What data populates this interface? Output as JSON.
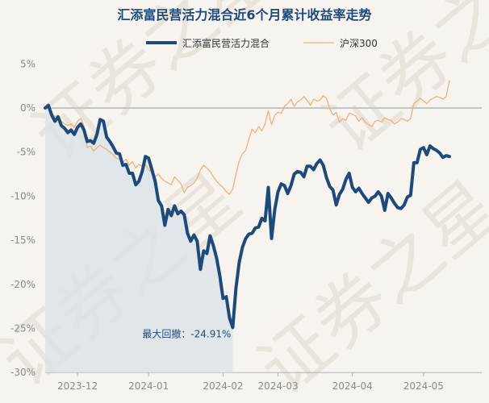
{
  "chart_data": {
    "type": "line",
    "title": "汇添富民营活力混合近6个月累计收益率走势",
    "watermark": "证券之星",
    "ylim": [
      -30,
      5
    ],
    "yticks": [
      5,
      0,
      -5,
      -10,
      -15,
      -20,
      -25,
      -30
    ],
    "ytick_labels": [
      "5%",
      "0%",
      "-5%",
      "-10%",
      "-15%",
      "-20%",
      "-25%",
      "-30%"
    ],
    "x_range": [
      0,
      135
    ],
    "xticks": [
      {
        "label": "2023-12",
        "pos": 10
      },
      {
        "label": "2024-01",
        "pos": 32
      },
      {
        "label": "2024-02",
        "pos": 55
      },
      {
        "label": "2024-03",
        "pos": 72
      },
      {
        "label": "2024-04",
        "pos": 95
      },
      {
        "label": "2024-05",
        "pos": 117
      }
    ],
    "series": [
      {
        "name": "汇添富民营活力混合",
        "color": "#1e4a7a",
        "values": [
          0,
          0.3,
          -0.8,
          -1.5,
          -1.0,
          -2.0,
          -2.3,
          -2.8,
          -2.5,
          -3.0,
          -2.2,
          -1.8,
          -2.5,
          -3.8,
          -3.7,
          -4.0,
          -3.0,
          -1.3,
          -1.5,
          -3.3,
          -3.8,
          -4.4,
          -5.1,
          -5.2,
          -6.5,
          -6.4,
          -7.4,
          -7.4,
          -8.7,
          -8.3,
          -7.2,
          -5.5,
          -5.7,
          -7.0,
          -8.3,
          -10.5,
          -11.1,
          -13.3,
          -11.5,
          -12.2,
          -11.1,
          -12.0,
          -11.7,
          -12.1,
          -14.2,
          -15.1,
          -14.4,
          -15.1,
          -18.3,
          -16.2,
          -16.5,
          -14.5,
          -15.6,
          -17.0,
          -19.0,
          -21.6,
          -21.4,
          -23.8,
          -24.9,
          -20.4,
          -17.5,
          -15.8,
          -14.8,
          -14.3,
          -14.2,
          -13.6,
          -13.5,
          -12.5,
          -12.8,
          -9.0,
          -14.8,
          -11.5,
          -9.5,
          -8.6,
          -8.8,
          -9.7,
          -8.8,
          -7.5,
          -7.2,
          -7.3,
          -7.8,
          -6.6,
          -6.6,
          -7.0,
          -6.3,
          -5.9,
          -6.5,
          -7.9,
          -8.9,
          -9.3,
          -11.0,
          -9.8,
          -9.2,
          -8.1,
          -7.4,
          -9.0,
          -9.5,
          -9.1,
          -9.7,
          -10.2,
          -10.7,
          -10.2,
          -10.0,
          -9.5,
          -10.0,
          -11.6,
          -9.7,
          -10.2,
          -10.8,
          -11.3,
          -11.4,
          -11.0,
          -10.1,
          -9.9,
          -6.2,
          -6.2,
          -4.7,
          -4.5,
          -5.3,
          -4.3,
          -4.6,
          -4.8,
          -5.1,
          -5.6,
          -5.4,
          -5.5
        ]
      },
      {
        "name": "沪深300",
        "color": "#f0b07c",
        "values": [
          0,
          0.2,
          -0.5,
          -1.0,
          -0.8,
          -1.5,
          -1.8,
          -2.0,
          -1.8,
          -2.2,
          -1.5,
          -1.2,
          -2.0,
          -4.5,
          -4.3,
          -4.9,
          -4.5,
          -4.2,
          -4.5,
          -4.7,
          -5.0,
          -5.3,
          -5.7,
          -5.8,
          -6.2,
          -5.8,
          -6.5,
          -6.1,
          -6.8,
          -6.4,
          -6.6,
          -6.4,
          -7.0,
          -7.3,
          -7.8,
          -7.5,
          -8.0,
          -8.3,
          -8.5,
          -8.7,
          -7.8,
          -8.2,
          -8.6,
          -9.6,
          -9.0,
          -8.8,
          -8.5,
          -8.0,
          -7.0,
          -6.5,
          -6.8,
          -7.2,
          -7.8,
          -8.3,
          -8.7,
          -9.0,
          -9.5,
          -9.8,
          -9.2,
          -7.5,
          -6.0,
          -5.2,
          -4.8,
          -3.5,
          -2.4,
          -2.8,
          -2.1,
          -2.6,
          -1.8,
          -0.3,
          -1.9,
          -0.8,
          -0.5,
          -0.6,
          0.2,
          0.5,
          1.0,
          0.2,
          0.7,
          0.9,
          1.3,
          0.9,
          0.3,
          1.0,
          0.8,
          0.9,
          1.4,
          1.1,
          -0.1,
          -0.8,
          -0.5,
          -1.6,
          -1.2,
          -1.4,
          -0.6,
          -0.7,
          -0.9,
          -1.5,
          -1.1,
          -1.6,
          -1.9,
          -2.1,
          -1.5,
          -1.4,
          -1.6,
          -1.1,
          -1.3,
          -1.4,
          -1.8,
          -1.6,
          -1.2,
          -1.3,
          -1.5,
          -1.2,
          0.5,
          0.8,
          1.1,
          0.8,
          0.5,
          0.9,
          1.1,
          1.3,
          1.2,
          1.0,
          1.3,
          3.1
        ]
      }
    ],
    "max_drawdown": {
      "label": "最大回撤：-24.91%",
      "value": -24.91,
      "start_index": 0,
      "end_index": 58
    }
  }
}
